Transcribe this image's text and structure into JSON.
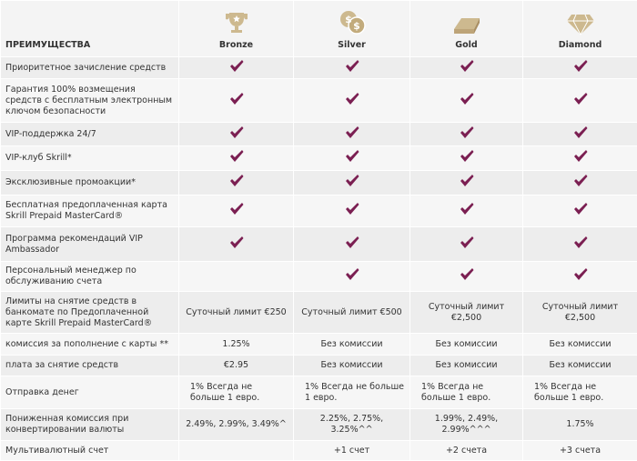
{
  "header": {
    "title": "ПРЕИМУЩЕСТВА",
    "columns": [
      "Bronze",
      "Silver",
      "Gold",
      "Diamond"
    ]
  },
  "table": {
    "rows": [
      {
        "label": "Приоритетное зачисление средств",
        "cells": [
          true,
          true,
          true,
          true
        ]
      },
      {
        "label": "Гарантия 100% возмещения средств с бесплатным электронным ключом безопасности",
        "cells": [
          true,
          true,
          true,
          true
        ]
      },
      {
        "label": "VIP-поддержка 24/7",
        "cells": [
          true,
          true,
          true,
          true
        ]
      },
      {
        "label": "VIP-клуб Skrill*",
        "cells": [
          true,
          true,
          true,
          true
        ]
      },
      {
        "label": "Эксклюзивные промоакции*",
        "cells": [
          true,
          true,
          true,
          true
        ]
      },
      {
        "label": "Бесплатная предоплаченная карта Skrill Prepaid MasterCard®",
        "cells": [
          true,
          true,
          true,
          true
        ]
      },
      {
        "label": "Программа рекомендаций VIP Ambassador",
        "cells": [
          true,
          true,
          true,
          true
        ]
      },
      {
        "label": "Персональный менеджер по обслуживанию счета",
        "cells": [
          null,
          true,
          true,
          true
        ]
      },
      {
        "label": "Лимиты на снятие средств в банкомате по Предоплаченной карте Skrill Prepaid MasterCard®",
        "cells": [
          "Суточный лимит €250",
          "Суточный лимит €500",
          "Суточный лимит €2,500",
          "Суточный лимит €2,500"
        ]
      },
      {
        "label": "комиссия за пополнение с карты **",
        "cells": [
          "1.25%",
          "Без комиссии",
          "Без комиссии",
          "Без комиссии"
        ]
      },
      {
        "label": "плата за снятие средств",
        "cells": [
          "€2.95",
          "Без комиссии",
          "Без комиссии",
          "Без комиссии"
        ]
      },
      {
        "label": "Отправка денег",
        "cells": [
          "1% Всегда не больше 1 евро.",
          "1% Всегда не больше 1 евро.",
          "1% Всегда не больше 1 евро.",
          "1% Всегда не больше 1 евро."
        ]
      },
      {
        "label": "Пониженная комиссия при конвертировании валюты",
        "cells": [
          "2.49%, 2.99%, 3.49%^",
          "2.25%, 2.75%, 3.25%^^",
          "1.99%, 2.49%, 2.99%^^^",
          "1.75%"
        ]
      },
      {
        "label": "Мультивалютный счет",
        "cells": [
          null,
          "+1 счет",
          "+2 счета",
          "+3 счета"
        ]
      }
    ]
  }
}
